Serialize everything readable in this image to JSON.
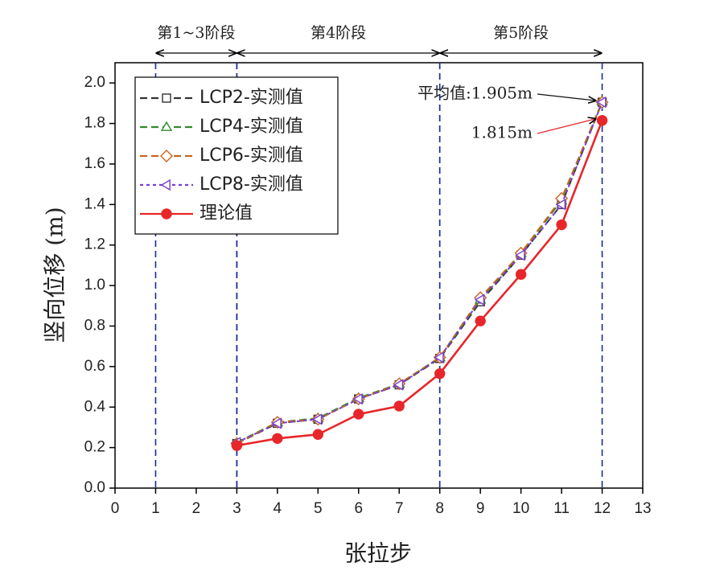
{
  "chart_data": {
    "type": "line",
    "x_label": "张拉步",
    "y_label": "竖向位移 (m)",
    "x": [
      3,
      4,
      5,
      6,
      7,
      8,
      9,
      10,
      11,
      12
    ],
    "series": [
      {
        "name": "LCP2-实测值",
        "color": "#333333",
        "marker": "square",
        "dash": "9,5",
        "values": [
          0.22,
          0.32,
          0.34,
          0.44,
          0.51,
          0.64,
          0.92,
          1.15,
          1.4,
          1.905
        ]
      },
      {
        "name": "LCP4-实测值",
        "color": "#2e8b2e",
        "marker": "triangle",
        "dash": "9,5",
        "values": [
          0.225,
          0.325,
          0.345,
          0.445,
          0.515,
          0.645,
          0.93,
          1.16,
          1.42,
          1.91
        ]
      },
      {
        "name": "LCP6-实测值",
        "color": "#c8641e",
        "marker": "diamond",
        "dash": "9,5",
        "values": [
          0.22,
          0.325,
          0.34,
          0.44,
          0.515,
          0.645,
          0.94,
          1.16,
          1.43,
          1.905
        ]
      },
      {
        "name": "LCP8-实测值",
        "color": "#7b3fd6",
        "marker": "left-triangle",
        "dash": "4,4",
        "values": [
          0.225,
          0.32,
          0.34,
          0.44,
          0.51,
          0.645,
          0.93,
          1.15,
          1.4,
          1.905
        ]
      },
      {
        "name": "理论值",
        "color": "#e8262a",
        "marker": "circle",
        "dash": "none",
        "values": [
          0.21,
          0.245,
          0.265,
          0.365,
          0.405,
          0.565,
          0.825,
          1.055,
          1.3,
          1.815
        ]
      }
    ],
    "xlim": [
      0,
      13
    ],
    "xticks": [
      0,
      1,
      2,
      3,
      4,
      5,
      6,
      7,
      8,
      9,
      10,
      11,
      12,
      13
    ],
    "ylim": [
      0,
      2.1
    ],
    "yticks": [
      {
        "value": 0,
        "label": "0.0"
      },
      0.2,
      0.4,
      0.6,
      0.8,
      {
        "value": 1,
        "label": "1.0"
      },
      1.2,
      1.4,
      1.6,
      1.8,
      {
        "value": 2,
        "label": "2.0"
      }
    ],
    "stages": [
      {
        "label": "第1~3阶段",
        "start": 1,
        "end": 3
      },
      {
        "label": "第4阶段",
        "start": 3,
        "end": 8
      },
      {
        "label": "第5阶段",
        "start": 8,
        "end": 12
      }
    ],
    "stage_line_color": "#1a2a9a",
    "annotations": [
      {
        "text": "平均值:1.905m",
        "x": 12,
        "y": 1.905,
        "color": "#111111"
      },
      {
        "text": "1.815m",
        "x": 12,
        "y": 1.815,
        "color": "#e8262a"
      }
    ],
    "legend": "upper left"
  }
}
